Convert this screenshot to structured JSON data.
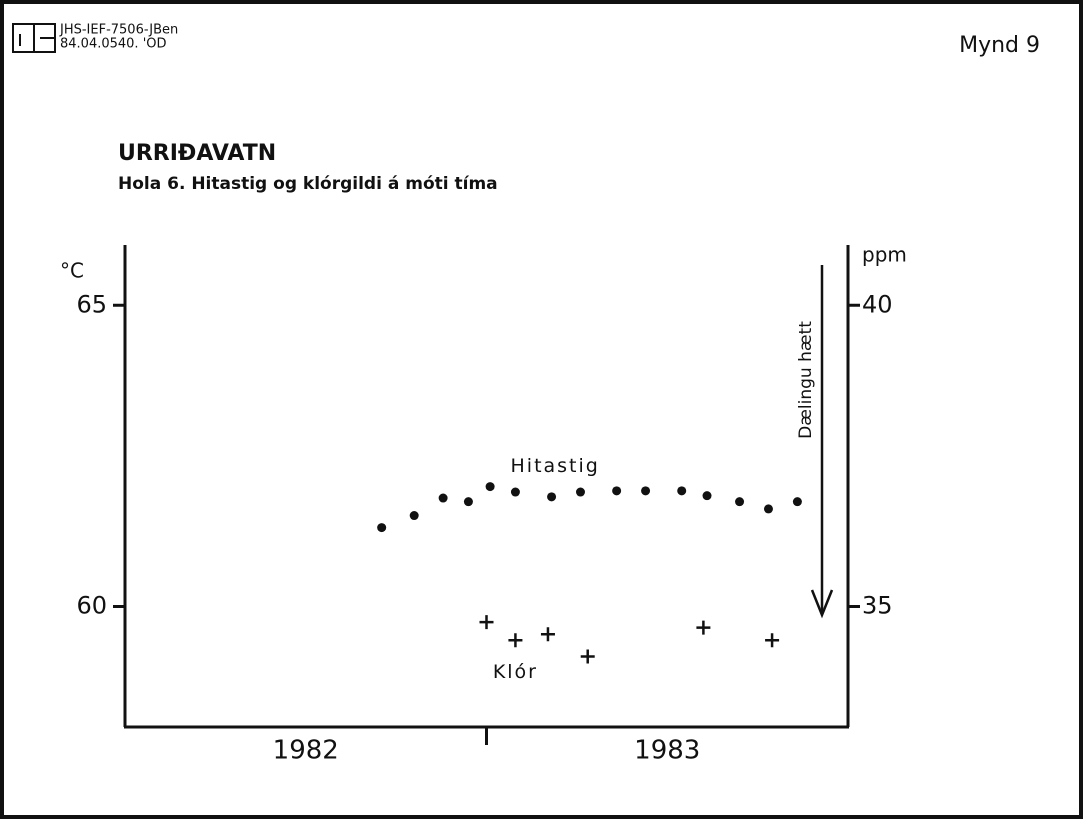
{
  "header": {
    "code": "JHS-IEF-7506-JBen",
    "ref": "84.04.0540. 'OD",
    "figure": "Mynd 9"
  },
  "chart_data": {
    "type": "scatter",
    "title": "URRIÐAVATN",
    "subtitle": "Hola 6. Hitastig og klórgildi á móti tíma",
    "y_label": "°C",
    "y2_label": "ppm",
    "annotation": "Dælingu hætt",
    "categories": [
      "1982",
      "1983"
    ],
    "xlim": [
      1982,
      1984
    ],
    "ylim": [
      58,
      66
    ],
    "yticks": [
      60,
      65
    ],
    "y2lim": [
      33,
      41
    ],
    "y2ticks": [
      35,
      40
    ],
    "series": [
      {
        "name": "Hitastig",
        "color": "#111111",
        "marker": "dot",
        "x": [
          1982.71,
          1982.8,
          1982.88,
          1982.95,
          1983.01,
          1983.08,
          1983.18,
          1983.26,
          1983.36,
          1983.44,
          1983.54,
          1983.61,
          1983.7,
          1983.78,
          1983.86
        ],
        "values": [
          61.31,
          61.51,
          61.8,
          61.74,
          61.99,
          61.9,
          61.82,
          61.9,
          61.92,
          61.92,
          61.92,
          61.84,
          61.74,
          61.62,
          61.74
        ]
      },
      {
        "name": "Klór",
        "color": "#111111",
        "marker": "plus",
        "axis": "y2",
        "x": [
          1983.0,
          1983.08,
          1983.17,
          1983.28,
          1983.6,
          1983.79
        ],
        "values": [
          34.74,
          34.44,
          34.54,
          34.17,
          34.65,
          34.44
        ]
      }
    ]
  }
}
